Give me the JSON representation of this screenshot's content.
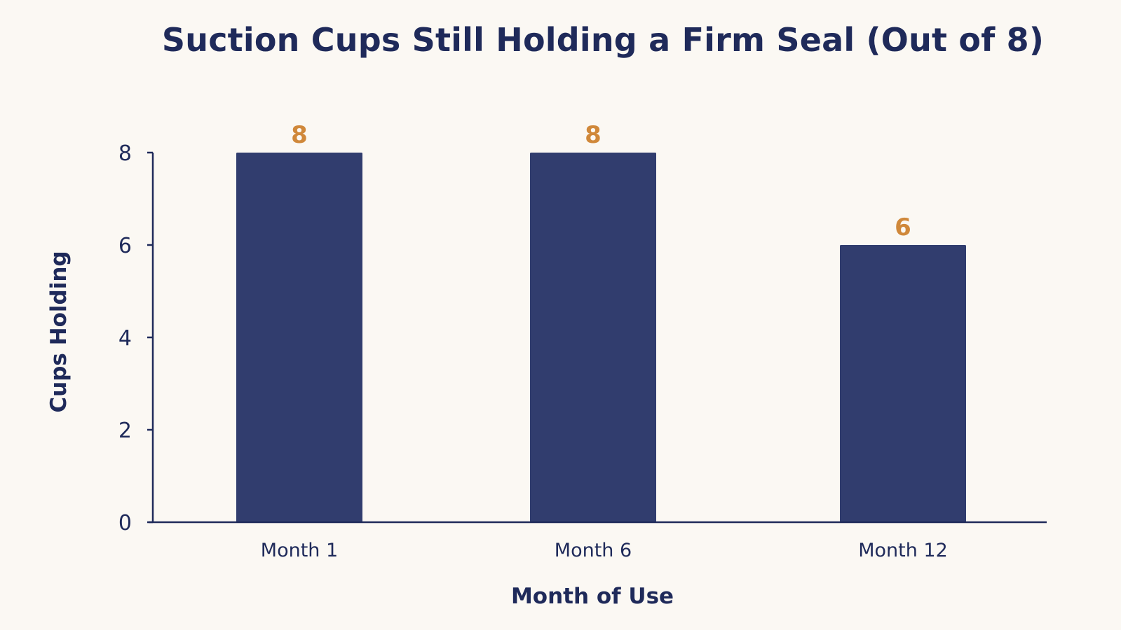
{
  "chart_data": {
    "type": "bar",
    "title": "Suction Cups Still Holding a Firm Seal (Out of 8)",
    "xlabel": "Month of Use",
    "ylabel": "Cups Holding",
    "categories": [
      "Month 1",
      "Month 6",
      "Month 12"
    ],
    "values": [
      8,
      8,
      6
    ],
    "data_labels": [
      "8",
      "8",
      "6"
    ],
    "ylim": [
      0,
      8
    ],
    "yticks": [
      0,
      2,
      4,
      6,
      8
    ],
    "grid": false,
    "legend": "none",
    "colors": {
      "bar": "#313d6e",
      "data_label": "#d0883a",
      "axis": "#1f2a5a",
      "text": "#1f2a5a",
      "background": "#fbf8f3"
    }
  }
}
